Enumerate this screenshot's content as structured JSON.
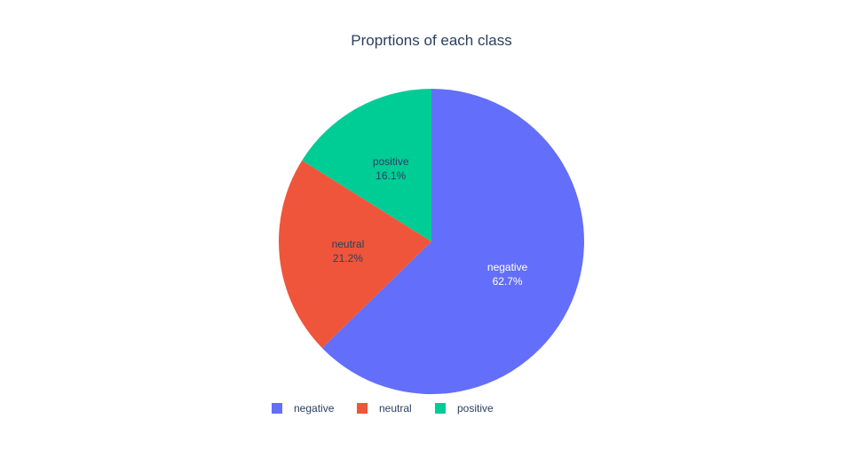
{
  "chart_data": {
    "type": "pie",
    "title": "Proprtions of each class",
    "labels": [
      "negative",
      "neutral",
      "positive"
    ],
    "values": [
      62.7,
      21.2,
      16.1
    ],
    "text": [
      "62.7%",
      "21.2%",
      "16.1%"
    ],
    "colors": [
      "#636efa",
      "#EF553B",
      "#00cc96"
    ],
    "text_colors": [
      "#ffffff",
      "#2a3f5f",
      "#2a3f5f"
    ],
    "direction": "clockwise",
    "rotation_start": "top",
    "legend": {
      "orientation": "horizontal",
      "placement": "bottom-center",
      "entries": [
        "negative",
        "neutral",
        "positive"
      ]
    }
  }
}
